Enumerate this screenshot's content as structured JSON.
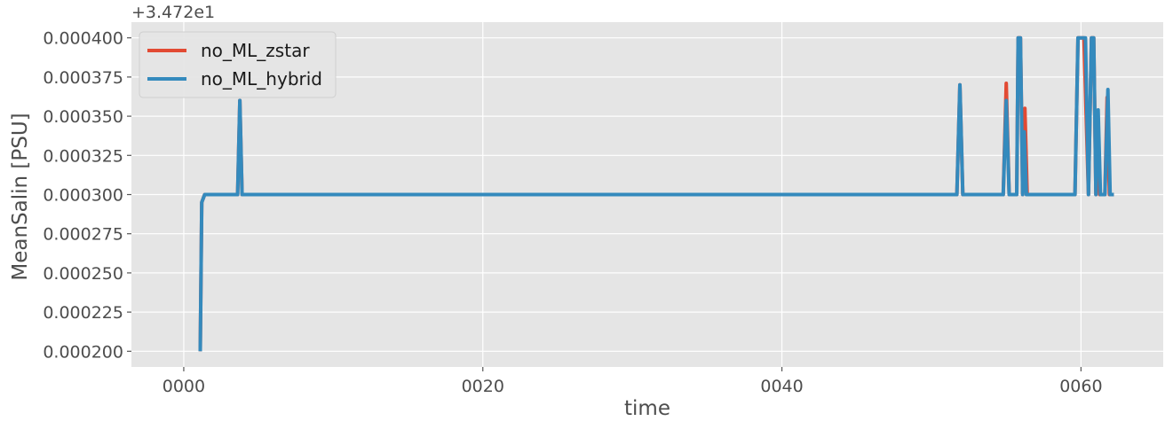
{
  "chart_data": {
    "type": "line",
    "title": "",
    "xlabel": "time",
    "ylabel": "MeanSalin [PSU]",
    "y_offset_label": "+3.472e1",
    "xlim": [
      -3.5,
      65.5
    ],
    "ylim": [
      0.00019,
      0.00041
    ],
    "x_ticks": [
      0,
      20,
      40,
      60
    ],
    "x_tick_labels": [
      "0000",
      "0020",
      "0040",
      "0060"
    ],
    "y_ticks": [
      0.0002,
      0.000225,
      0.00025,
      0.000275,
      0.0003,
      0.000325,
      0.00035,
      0.000375,
      0.0004
    ],
    "y_tick_labels": [
      "0.000200",
      "0.000225",
      "0.000250",
      "0.000275",
      "0.000300",
      "0.000325",
      "0.000350",
      "0.000375",
      "0.000400"
    ],
    "grid": true,
    "legend_position": "top-left",
    "series": [
      {
        "name": "no_ML_zstar",
        "color": "#E24A33",
        "points": [
          [
            1.1,
            0.0002
          ],
          [
            1.2,
            0.000295
          ],
          [
            1.4,
            0.0003
          ],
          [
            3.6,
            0.0003
          ],
          [
            3.75,
            0.00036
          ],
          [
            3.9,
            0.0003
          ],
          [
            51.7,
            0.0003
          ],
          [
            51.9,
            0.00037
          ],
          [
            52.1,
            0.0003
          ],
          [
            54.8,
            0.0003
          ],
          [
            55.0,
            0.000371
          ],
          [
            55.2,
            0.0003
          ],
          [
            55.7,
            0.0003
          ],
          [
            55.8,
            0.0004
          ],
          [
            55.95,
            0.0004
          ],
          [
            56.1,
            0.0003
          ],
          [
            56.25,
            0.000355
          ],
          [
            56.4,
            0.0003
          ],
          [
            59.6,
            0.0003
          ],
          [
            59.8,
            0.0004
          ],
          [
            60.2,
            0.0004
          ],
          [
            60.5,
            0.0003
          ],
          [
            60.7,
            0.0004
          ],
          [
            60.85,
            0.0004
          ],
          [
            61.0,
            0.0003
          ],
          [
            61.1,
            0.000352
          ],
          [
            61.25,
            0.0003
          ],
          [
            61.6,
            0.0003
          ],
          [
            61.75,
            0.000362
          ],
          [
            61.9,
            0.0003
          ],
          [
            62.2,
            0.0003
          ]
        ]
      },
      {
        "name": "no_ML_hybrid",
        "color": "#348ABD",
        "points": [
          [
            1.1,
            0.0002
          ],
          [
            1.2,
            0.000295
          ],
          [
            1.4,
            0.0003
          ],
          [
            3.6,
            0.0003
          ],
          [
            3.75,
            0.00036
          ],
          [
            3.9,
            0.0003
          ],
          [
            51.7,
            0.0003
          ],
          [
            51.9,
            0.00037
          ],
          [
            52.1,
            0.0003
          ],
          [
            54.8,
            0.0003
          ],
          [
            55.0,
            0.00036
          ],
          [
            55.2,
            0.0003
          ],
          [
            55.7,
            0.0003
          ],
          [
            55.8,
            0.0004
          ],
          [
            55.95,
            0.0004
          ],
          [
            56.1,
            0.0003
          ],
          [
            56.2,
            0.00034
          ],
          [
            56.35,
            0.0003
          ],
          [
            59.6,
            0.0003
          ],
          [
            59.8,
            0.0004
          ],
          [
            60.3,
            0.0004
          ],
          [
            60.5,
            0.0003
          ],
          [
            60.7,
            0.0004
          ],
          [
            60.85,
            0.0004
          ],
          [
            61.0,
            0.0003
          ],
          [
            61.15,
            0.000354
          ],
          [
            61.3,
            0.0003
          ],
          [
            61.6,
            0.0003
          ],
          [
            61.8,
            0.000367
          ],
          [
            61.95,
            0.0003
          ],
          [
            62.2,
            0.0003
          ]
        ]
      }
    ]
  }
}
